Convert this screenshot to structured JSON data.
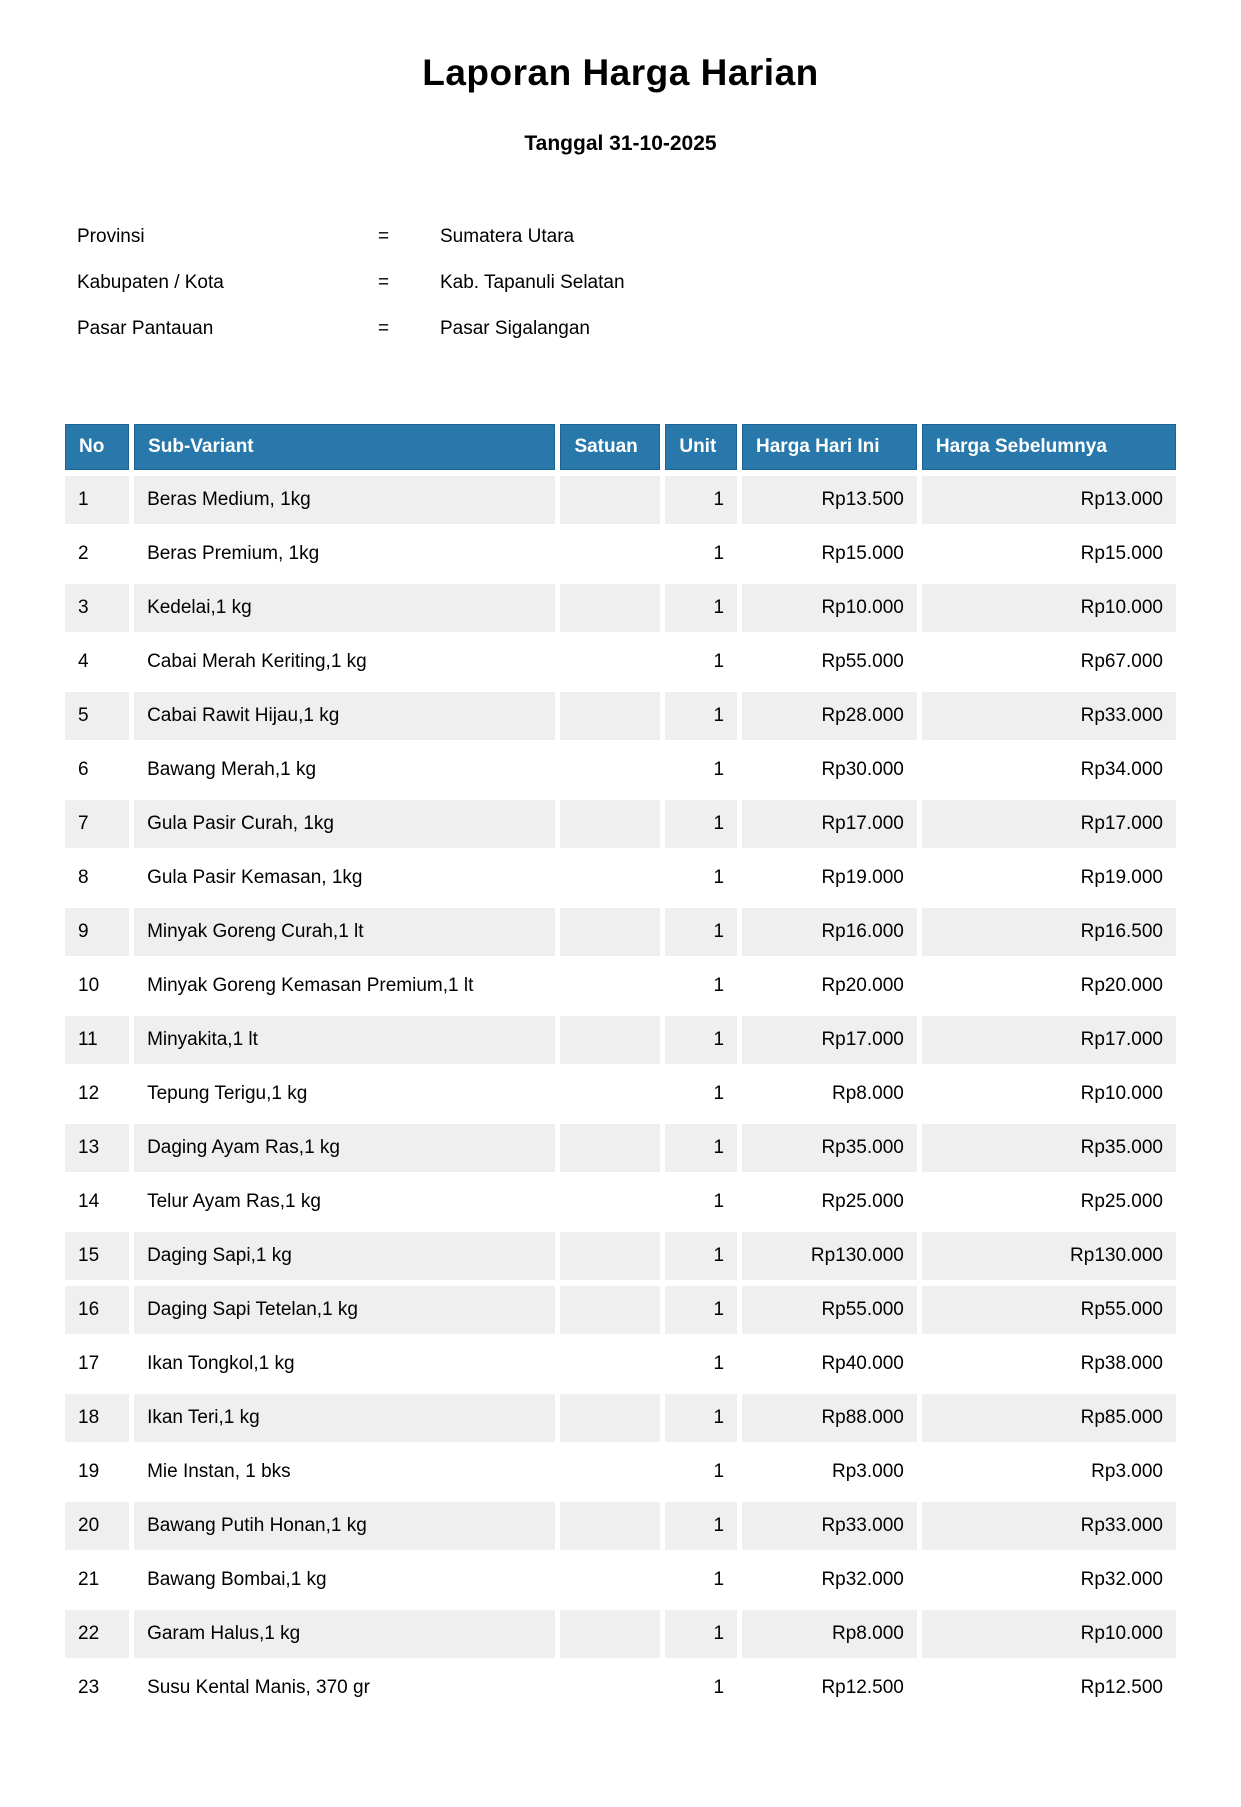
{
  "document": {
    "title": "Laporan Harga Harian",
    "date_line": "Tanggal 31-10-2025"
  },
  "meta": {
    "separator": "=",
    "fields": [
      {
        "label": "Provinsi",
        "value": "Sumatera Utara"
      },
      {
        "label": "Kabupaten / Kota",
        "value": "Kab. Tapanuli Selatan"
      },
      {
        "label": "Pasar Pantauan",
        "value": "Pasar Sigalangan"
      }
    ]
  },
  "table": {
    "columns": [
      "No",
      "Sub-Variant",
      "Satuan",
      "Unit",
      "Harga Hari Ini",
      "Harga Sebelumnya"
    ],
    "rows": [
      {
        "no": "1",
        "sub_variant": "Beras Medium, 1kg",
        "satuan": "",
        "unit": "1",
        "harga_hari_ini": "Rp13.500",
        "harga_sebelumnya": "Rp13.000"
      },
      {
        "no": "2",
        "sub_variant": "Beras Premium, 1kg",
        "satuan": "",
        "unit": "1",
        "harga_hari_ini": "Rp15.000",
        "harga_sebelumnya": "Rp15.000"
      },
      {
        "no": "3",
        "sub_variant": "Kedelai,1 kg",
        "satuan": "",
        "unit": "1",
        "harga_hari_ini": "Rp10.000",
        "harga_sebelumnya": "Rp10.000"
      },
      {
        "no": "4",
        "sub_variant": "Cabai Merah Keriting,1 kg",
        "satuan": "",
        "unit": "1",
        "harga_hari_ini": "Rp55.000",
        "harga_sebelumnya": "Rp67.000"
      },
      {
        "no": "5",
        "sub_variant": "Cabai Rawit Hijau,1 kg",
        "satuan": "",
        "unit": "1",
        "harga_hari_ini": "Rp28.000",
        "harga_sebelumnya": "Rp33.000"
      },
      {
        "no": "6",
        "sub_variant": "Bawang Merah,1 kg",
        "satuan": "",
        "unit": "1",
        "harga_hari_ini": "Rp30.000",
        "harga_sebelumnya": "Rp34.000"
      },
      {
        "no": "7",
        "sub_variant": "Gula Pasir Curah, 1kg",
        "satuan": "",
        "unit": "1",
        "harga_hari_ini": "Rp17.000",
        "harga_sebelumnya": "Rp17.000"
      },
      {
        "no": "8",
        "sub_variant": "Gula Pasir Kemasan, 1kg",
        "satuan": "",
        "unit": "1",
        "harga_hari_ini": "Rp19.000",
        "harga_sebelumnya": "Rp19.000"
      },
      {
        "no": "9",
        "sub_variant": "Minyak Goreng Curah,1 lt",
        "satuan": "",
        "unit": "1",
        "harga_hari_ini": "Rp16.000",
        "harga_sebelumnya": "Rp16.500"
      },
      {
        "no": "10",
        "sub_variant": "Minyak Goreng Kemasan Premium,1 lt",
        "satuan": "",
        "unit": "1",
        "harga_hari_ini": "Rp20.000",
        "harga_sebelumnya": "Rp20.000"
      },
      {
        "no": "11",
        "sub_variant": "Minyakita,1 lt",
        "satuan": "",
        "unit": "1",
        "harga_hari_ini": "Rp17.000",
        "harga_sebelumnya": "Rp17.000"
      },
      {
        "no": "12",
        "sub_variant": "Tepung Terigu,1 kg",
        "satuan": "",
        "unit": "1",
        "harga_hari_ini": "Rp8.000",
        "harga_sebelumnya": "Rp10.000"
      },
      {
        "no": "13",
        "sub_variant": "Daging Ayam Ras,1 kg",
        "satuan": "",
        "unit": "1",
        "harga_hari_ini": "Rp35.000",
        "harga_sebelumnya": "Rp35.000"
      },
      {
        "no": "14",
        "sub_variant": "Telur Ayam Ras,1 kg",
        "satuan": "",
        "unit": "1",
        "harga_hari_ini": "Rp25.000",
        "harga_sebelumnya": "Rp25.000"
      },
      {
        "no": "15",
        "sub_variant": "Daging Sapi,1 kg",
        "satuan": "",
        "unit": "1",
        "harga_hari_ini": "Rp130.000",
        "harga_sebelumnya": "Rp130.000"
      },
      {
        "no": "16",
        "sub_variant": "Daging Sapi Tetelan,1 kg",
        "satuan": "",
        "unit": "1",
        "harga_hari_ini": "Rp55.000",
        "harga_sebelumnya": "Rp55.000"
      },
      {
        "no": "17",
        "sub_variant": "Ikan Tongkol,1 kg",
        "satuan": "",
        "unit": "1",
        "harga_hari_ini": "Rp40.000",
        "harga_sebelumnya": "Rp38.000"
      },
      {
        "no": "18",
        "sub_variant": "Ikan Teri,1 kg",
        "satuan": "",
        "unit": "1",
        "harga_hari_ini": "Rp88.000",
        "harga_sebelumnya": "Rp85.000"
      },
      {
        "no": "19",
        "sub_variant": "Mie Instan, 1 bks",
        "satuan": "",
        "unit": "1",
        "harga_hari_ini": "Rp3.000",
        "harga_sebelumnya": "Rp3.000"
      },
      {
        "no": "20",
        "sub_variant": "Bawang Putih Honan,1 kg",
        "satuan": "",
        "unit": "1",
        "harga_hari_ini": "Rp33.000",
        "harga_sebelumnya": "Rp33.000"
      },
      {
        "no": "21",
        "sub_variant": "Bawang Bombai,1 kg",
        "satuan": "",
        "unit": "1",
        "harga_hari_ini": "Rp32.000",
        "harga_sebelumnya": "Rp32.000"
      },
      {
        "no": "22",
        "sub_variant": "Garam Halus,1 kg",
        "satuan": "",
        "unit": "1",
        "harga_hari_ini": "Rp8.000",
        "harga_sebelumnya": "Rp10.000"
      },
      {
        "no": "23",
        "sub_variant": "Susu Kental Manis, 370 gr",
        "satuan": "",
        "unit": "1",
        "harga_hari_ini": "Rp12.500",
        "harga_sebelumnya": "Rp12.500"
      }
    ]
  },
  "colors": {
    "header_bg": "#2878AC",
    "header_text": "#FFFFFF",
    "row_shaded": "#EFEFEF"
  }
}
